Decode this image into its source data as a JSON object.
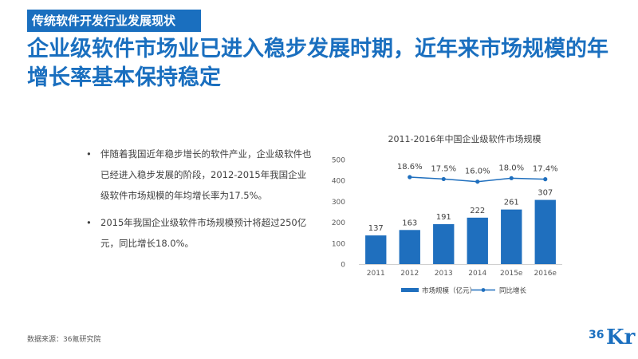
{
  "section_tag": "传统软件开发行业发展现状",
  "headline": "企业级软件市场业已进入稳步发展时期，近年来市场规模的年增长率基本保持稳定",
  "bullets": [
    "伴随着我国近年稳步增长的软件产业，企业级软件也已经进入稳步发展的阶段，2012-2015年我国企业级软件市场规模的年均增长率为17.5%。",
    "2015年我国企业级软件市场规模预计将超过250亿元，同比增长18.0%。"
  ],
  "source": "数据来源：36氪研究院",
  "logo": {
    "num": "36",
    "kr": "Kr"
  },
  "colors": {
    "accent": "#1a6fbf",
    "bar": "#1f6fbe",
    "line": "#1f6fbe"
  },
  "chart_data": {
    "type": "bar",
    "title": "2011-2016年中国企业级软件市场规模",
    "categories": [
      "2011",
      "2012",
      "2013",
      "2014",
      "2015e",
      "2016e"
    ],
    "series": [
      {
        "name": "市场规模（亿元）",
        "type": "bar",
        "values": [
          137,
          163,
          191,
          222,
          261,
          307
        ],
        "labels": [
          "137",
          "163",
          "191",
          "222",
          "261",
          "307"
        ]
      },
      {
        "name": "同比增长",
        "type": "line",
        "values": [
          null,
          18.6,
          17.5,
          16.0,
          18.0,
          17.4
        ],
        "labels": [
          "",
          "18.6%",
          "17.5%",
          "16.0%",
          "18.0%",
          "17.4%"
        ]
      }
    ],
    "yticks": [
      "0",
      "100",
      "200",
      "300",
      "400",
      "500"
    ],
    "ylim": [
      0,
      500
    ],
    "legend_position": "bottom"
  }
}
